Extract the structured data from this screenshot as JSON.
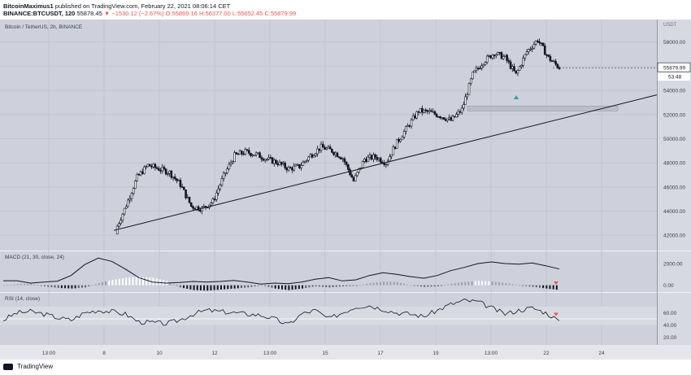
{
  "header": {
    "author": "BitcoinMaximus1",
    "published_text": "published on TradingView.com, February 22, 2021 08:06:14 CET",
    "symbol_line": "BINANCE:BTCUSDT, 120",
    "last": "55878.45",
    "change": "▼ −1530.12 (−2.67%)",
    "ohlc": "O:55869.16 H:56377.00 L:55652.45 C:55879.99"
  },
  "chart_data": {
    "type": "candlestick",
    "title": "Bitcoin / TetherUS, 2h, BINANCE",
    "price_axis_label": "USDT",
    "ylim": [
      41000,
      59600
    ],
    "y_ticks": [
      42000,
      44000,
      46000,
      48000,
      50000,
      52000,
      54000,
      56000,
      58000
    ],
    "x_tick_labels": [
      "13:00",
      "8",
      "10",
      "12",
      "13:00",
      "15",
      "17",
      "19",
      "13:00",
      "22",
      "24"
    ],
    "last_price": "55879.99",
    "countdown": "53:48",
    "trendline": {
      "from": [
        0,
        42400
      ],
      "to": [
        1,
        53300
      ]
    },
    "support_zone": [
      52300,
      52700
    ],
    "signal_marker": {
      "type": "buy",
      "price": 53400
    },
    "close_series": [
      42400,
      44500,
      46800,
      47800,
      47500,
      47200,
      46200,
      44400,
      44200,
      44800,
      46900,
      48600,
      48900,
      48700,
      48300,
      48000,
      47500,
      47700,
      48600,
      49300,
      49000,
      48400,
      46500,
      48300,
      48500,
      48000,
      49700,
      51000,
      52300,
      52200,
      51900,
      51500,
      52400,
      55300,
      56400,
      57100,
      56700,
      55300,
      57200,
      58200,
      56700,
      55880
    ]
  },
  "macd": {
    "label": "MACD (21, 30, close, 24)",
    "ylim": [
      -400,
      2900
    ],
    "y_ticks": [
      "2000.00",
      "0.00"
    ],
    "macd_line": [
      420,
      420,
      200,
      300,
      380,
      900,
      1900,
      2500,
      2200,
      1500,
      700,
      300,
      200,
      250,
      350,
      300,
      350,
      450,
      300,
      100,
      200,
      150,
      300,
      550,
      700,
      400,
      500,
      900,
      1150,
      1000,
      800,
      650,
      900,
      1350,
      1650,
      2000,
      2150,
      2000,
      1950,
      2050,
      1800,
      1500
    ],
    "histogram": [
      0,
      100,
      150,
      -100,
      -250,
      -300,
      -200,
      200,
      500,
      700,
      800,
      700,
      400,
      -200,
      -450,
      -500,
      -400,
      -300,
      -200,
      0,
      -300,
      -450,
      -300,
      -100,
      -200,
      -100,
      -50,
      200,
      350,
      300,
      0,
      -150,
      -100,
      150,
      300,
      400,
      350,
      200,
      0,
      -150,
      -300,
      -450
    ]
  },
  "rsi": {
    "label": "RSI (14, close)",
    "ylim": [
      10,
      90
    ],
    "y_ticks": [
      "60.00",
      "40.00",
      "20.00"
    ],
    "band": [
      40,
      70
    ],
    "values": [
      48,
      60,
      62,
      58,
      52,
      48,
      60,
      64,
      62,
      58,
      45,
      44,
      42,
      48,
      58,
      64,
      62,
      60,
      58,
      56,
      50,
      40,
      58,
      64,
      50,
      60,
      70,
      72,
      66,
      60,
      58,
      54,
      64,
      74,
      80,
      78,
      68,
      58,
      64,
      68,
      60,
      47
    ]
  },
  "time_axis_note": "",
  "footer": {
    "brand": "TradingView"
  }
}
